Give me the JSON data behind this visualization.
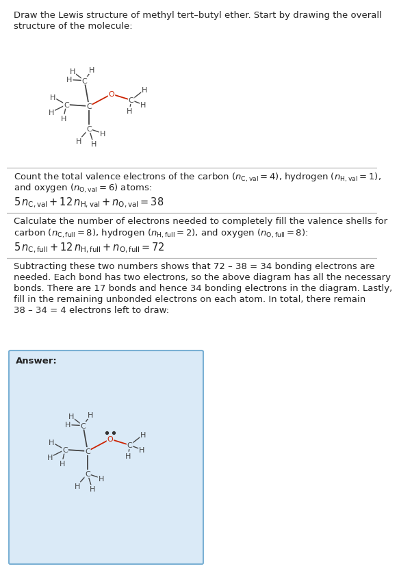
{
  "bg_color": "#ffffff",
  "answer_bg_color": "#daeaf7",
  "answer_border_color": "#7ab0d4",
  "atom_color": "#444444",
  "O_color": "#cc2200",
  "bond_color": "#444444",
  "O_bond_color": "#cc2200",
  "text_color": "#222222",
  "font_size": 9.5,
  "answer_label": "Answer:",
  "title_line1": "Draw the Lewis structure of methyl tert–butyl ether. Start by drawing the overall",
  "title_line2": "structure of the molecule:",
  "s1_line1": "Count the total valence electrons of the carbon (",
  "s1_line2": "and oxygen (",
  "s2_line1": "Calculate the number of electrons needed to completely fill the valence shells for",
  "s2_line2": "carbon (",
  "s3_lines": [
    "Subtracting these two numbers shows that 72 – 38 = 34 bonding electrons are",
    "needed. Each bond has two electrons, so the above diagram has all the necessary",
    "bonds. There are 17 bonds and hence 34 bonding electrons in the diagram. Lastly,",
    "fill in the remaining unbonded electrons on each atom. In total, there remain",
    "38 – 34 = 4 electrons left to draw:"
  ]
}
